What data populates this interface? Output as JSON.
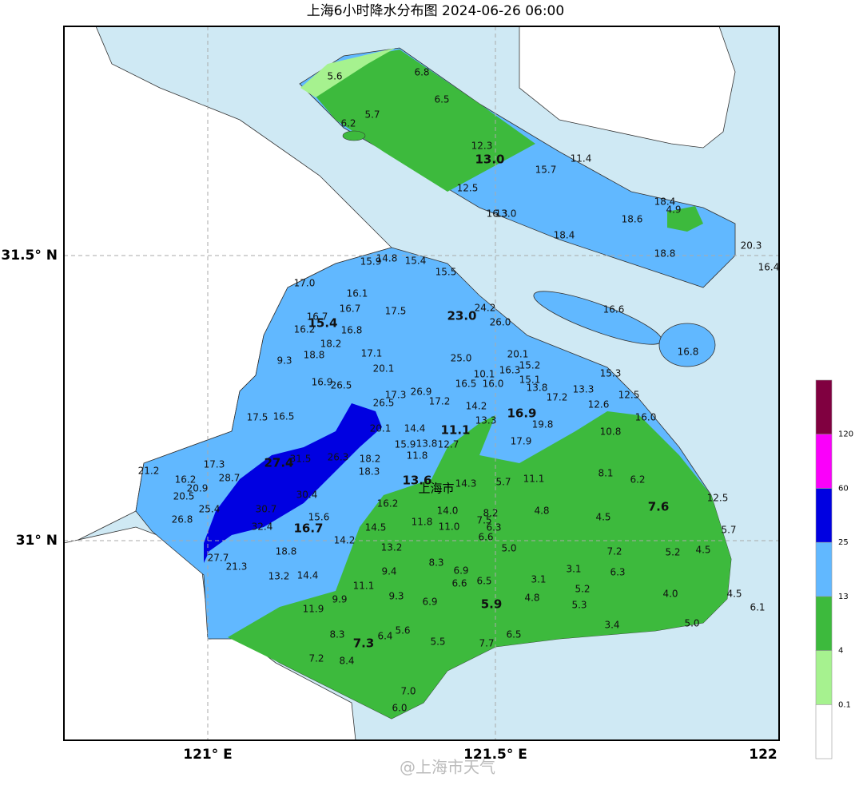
{
  "header": {
    "title": "上海6小时降水分布图 2024-06-26 06:00"
  },
  "axes": {
    "lat_labels": [
      "31.5° N",
      "31° N"
    ],
    "lon_labels": [
      "121° E",
      "121.5° E",
      "122"
    ]
  },
  "map": {
    "place_label": "上海市",
    "stations": [
      {
        "label": "5.6"
      },
      {
        "label": "6.8"
      },
      {
        "label": "6.5"
      },
      {
        "label": "5.7"
      },
      {
        "label": "6.2"
      },
      {
        "label": "12.3"
      },
      {
        "label": "13.0",
        "bold": true
      },
      {
        "label": "11.4"
      },
      {
        "label": "15.7"
      },
      {
        "label": "12.5"
      },
      {
        "label": "18.4"
      },
      {
        "label": "4.9"
      },
      {
        "label": "16.3"
      },
      {
        "label": "13.0"
      },
      {
        "label": "18.6"
      },
      {
        "label": "18.4"
      },
      {
        "label": "20.3"
      },
      {
        "label": "18.8"
      },
      {
        "label": "16.4"
      },
      {
        "label": "15.9"
      },
      {
        "label": "14.8"
      },
      {
        "label": "15.4"
      },
      {
        "label": "15.5"
      },
      {
        "label": "17.0"
      },
      {
        "label": "16.1"
      },
      {
        "label": "16.7"
      },
      {
        "label": "17.5"
      },
      {
        "label": "16.7"
      },
      {
        "label": "15.4",
        "bold": true
      },
      {
        "label": "24.2"
      },
      {
        "label": "23.0",
        "bold": true
      },
      {
        "label": "26.0"
      },
      {
        "label": "16.2"
      },
      {
        "label": "16.8"
      },
      {
        "label": "18.2"
      },
      {
        "label": "16.6"
      },
      {
        "label": "16.8"
      },
      {
        "label": "18.8"
      },
      {
        "label": "17.1"
      },
      {
        "label": "25.0"
      },
      {
        "label": "20.1"
      },
      {
        "label": "9.3"
      },
      {
        "label": "16.3"
      },
      {
        "label": "15.2"
      },
      {
        "label": "20.1"
      },
      {
        "label": "10.1"
      },
      {
        "label": "15.1"
      },
      {
        "label": "15.3"
      },
      {
        "label": "16.9"
      },
      {
        "label": "26.5"
      },
      {
        "label": "16.5"
      },
      {
        "label": "16.0"
      },
      {
        "label": "13.8"
      },
      {
        "label": "13.3"
      },
      {
        "label": "17.2"
      },
      {
        "label": "12.5"
      },
      {
        "label": "17.3"
      },
      {
        "label": "26.9"
      },
      {
        "label": "26.5"
      },
      {
        "label": "17.2"
      },
      {
        "label": "14.2"
      },
      {
        "label": "12.6"
      },
      {
        "label": "17.5"
      },
      {
        "label": "16.5"
      },
      {
        "label": "16.9",
        "bold": true
      },
      {
        "label": "16.0"
      },
      {
        "label": "13.3"
      },
      {
        "label": "19.8"
      },
      {
        "label": "20.1"
      },
      {
        "label": "14.4"
      },
      {
        "label": "11.1",
        "bold": true
      },
      {
        "label": "10.8"
      },
      {
        "label": "15.9"
      },
      {
        "label": "13.8"
      },
      {
        "label": "12.7"
      },
      {
        "label": "17.9"
      },
      {
        "label": "11.8"
      },
      {
        "label": "17.3"
      },
      {
        "label": "27.4",
        "bold": true
      },
      {
        "label": "31.5"
      },
      {
        "label": "26.3"
      },
      {
        "label": "18.2"
      },
      {
        "label": "21.2"
      },
      {
        "label": "18.3"
      },
      {
        "label": "8.1"
      },
      {
        "label": "28.7"
      },
      {
        "label": "16.2"
      },
      {
        "label": "13.6",
        "bold": true
      },
      {
        "label": "14.3"
      },
      {
        "label": "5.7"
      },
      {
        "label": "11.1"
      },
      {
        "label": "6.2"
      },
      {
        "label": "20.9"
      },
      {
        "label": "30.4"
      },
      {
        "label": "20.5"
      },
      {
        "label": "12.5"
      },
      {
        "label": "7.6",
        "bold": true
      },
      {
        "label": "16.2"
      },
      {
        "label": "14.0"
      },
      {
        "label": "8.2"
      },
      {
        "label": "4.8"
      },
      {
        "label": "25.4"
      },
      {
        "label": "30.7"
      },
      {
        "label": "4.5"
      },
      {
        "label": "26.8"
      },
      {
        "label": "15.6"
      },
      {
        "label": "7.5"
      },
      {
        "label": "11.8"
      },
      {
        "label": "11.0"
      },
      {
        "label": "6.3"
      },
      {
        "label": "32.4"
      },
      {
        "label": "16.7",
        "bold": true
      },
      {
        "label": "14.5"
      },
      {
        "label": "5.7"
      },
      {
        "label": "6.6"
      },
      {
        "label": "14.2"
      },
      {
        "label": "5.0"
      },
      {
        "label": "13.2"
      },
      {
        "label": "7.2"
      },
      {
        "label": "5.2"
      },
      {
        "label": "4.5"
      },
      {
        "label": "18.8"
      },
      {
        "label": "27.7"
      },
      {
        "label": "21.3"
      },
      {
        "label": "8.3"
      },
      {
        "label": "9.4"
      },
      {
        "label": "6.9"
      },
      {
        "label": "3.1"
      },
      {
        "label": "6.3"
      },
      {
        "label": "3.1"
      },
      {
        "label": "13.2"
      },
      {
        "label": "14.4"
      },
      {
        "label": "6.5"
      },
      {
        "label": "6.6"
      },
      {
        "label": "11.1"
      },
      {
        "label": "5.2"
      },
      {
        "label": "4.0"
      },
      {
        "label": "4.5"
      },
      {
        "label": "9.9"
      },
      {
        "label": "9.3"
      },
      {
        "label": "6.9"
      },
      {
        "label": "4.8"
      },
      {
        "label": "5.9",
        "bold": true
      },
      {
        "label": "5.3"
      },
      {
        "label": "6.1"
      },
      {
        "label": "11.9"
      },
      {
        "label": "3.4"
      },
      {
        "label": "5.0"
      },
      {
        "label": "5.6"
      },
      {
        "label": "8.3"
      },
      {
        "label": "6.4"
      },
      {
        "label": "7.3",
        "bold": true
      },
      {
        "label": "6.5"
      },
      {
        "label": "5.5"
      },
      {
        "label": "7.7"
      },
      {
        "label": "7.2"
      },
      {
        "label": "8.4"
      },
      {
        "label": "7.0"
      },
      {
        "label": "6.0"
      }
    ]
  },
  "legend": {
    "levels": [
      0.1,
      4,
      13,
      25,
      60,
      120
    ],
    "colors": [
      "#ffffff",
      "#a6f28f",
      "#3dba3d",
      "#61b8ff",
      "#0000e1",
      "#fa00fa",
      "#800040"
    ]
  },
  "watermark": "@上海市天气"
}
